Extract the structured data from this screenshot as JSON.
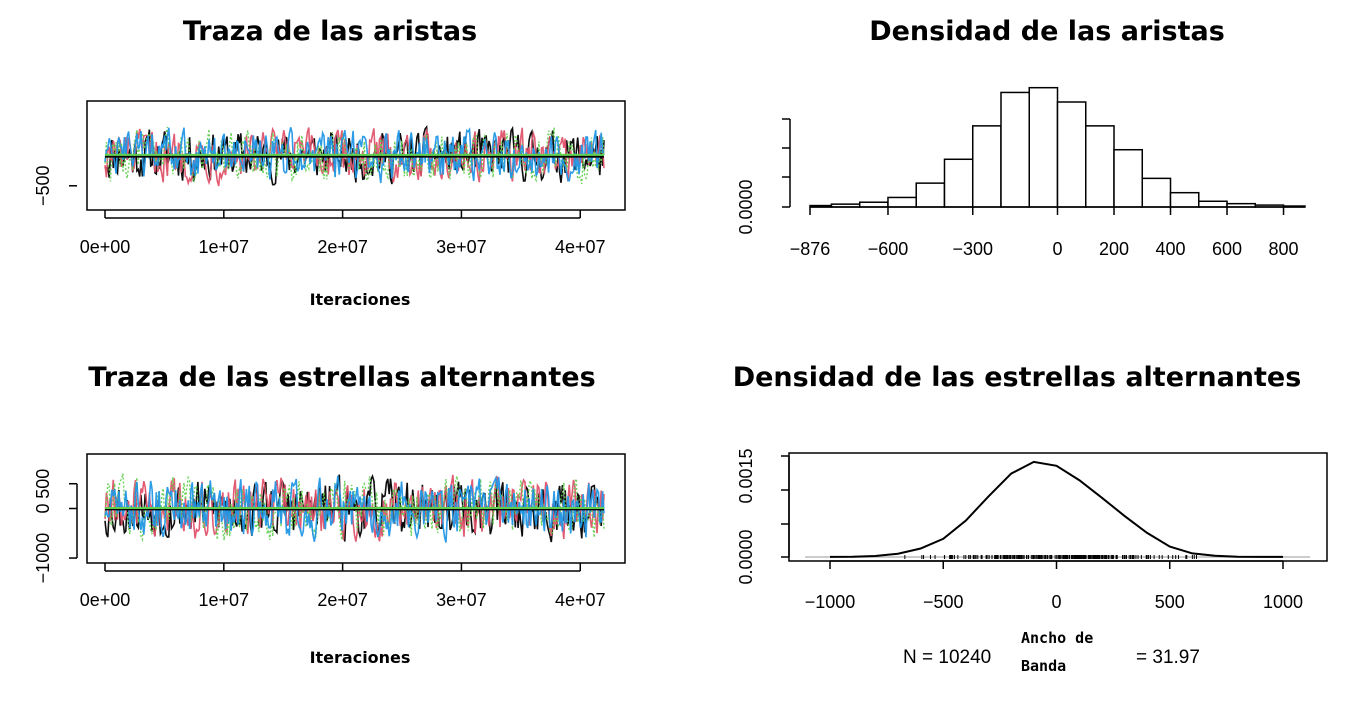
{
  "chart_data": [
    {
      "id": "trace-edges",
      "type": "line",
      "title": "Traza de las aristas",
      "xlabel": "Iteraciones",
      "ylabel": "",
      "x_ticks": [
        "0e+00",
        "1e+07",
        "2e+07",
        "3e+07",
        "4e+07"
      ],
      "x_tick_values": [
        0,
        10000000,
        20000000,
        30000000,
        40000000
      ],
      "y_ticks": [
        "−500"
      ],
      "y_tick_values": [
        -500
      ],
      "xlim": [
        0,
        42000000
      ],
      "ylim": [
        -900,
        900
      ],
      "series_colors": [
        "#000000",
        "#df536b",
        "#61d04f",
        "#2297e6"
      ],
      "mean_line_colors": [
        "#000000",
        "#61d04f"
      ],
      "series_amplitude": 420,
      "center": 0,
      "grid": false
    },
    {
      "id": "density-edges",
      "type": "bar",
      "title": "Densidad de las aristas",
      "xlabel": "",
      "ylabel": "",
      "x_ticks": [
        "−876",
        "−600",
        "−300",
        "0",
        "200",
        "400",
        "600",
        "800"
      ],
      "x_tick_values": [
        -876,
        -600,
        -300,
        0,
        200,
        400,
        600,
        800
      ],
      "y_ticks": [
        "0.0000"
      ],
      "y_tick_values": [
        0
      ],
      "xlim": [
        -876,
        876
      ],
      "ylim": [
        0,
        0.0022
      ],
      "bin_edges": [
        -900,
        -800,
        -700,
        -600,
        -500,
        -400,
        -300,
        -200,
        -100,
        0,
        100,
        200,
        300,
        400,
        500,
        600,
        700,
        800,
        900
      ],
      "values": [
        3e-05,
        6e-05,
        0.0001,
        0.0002,
        0.0005,
        0.001,
        0.0017,
        0.0024,
        0.0025,
        0.0022,
        0.0017,
        0.0012,
        0.0006,
        0.0003,
        0.00012,
        7e-05,
        4e-05,
        2e-05
      ],
      "grid": false
    },
    {
      "id": "trace-stars",
      "type": "line",
      "title": "Traza de las estrellas alternantes",
      "xlabel": "Iteraciones",
      "ylabel": "",
      "x_ticks": [
        "0e+00",
        "1e+07",
        "2e+07",
        "3e+07",
        "4e+07"
      ],
      "x_tick_values": [
        0,
        10000000,
        20000000,
        30000000,
        40000000
      ],
      "y_ticks": [
        "−1000",
        "0",
        "500"
      ],
      "y_tick_values": [
        -1000,
        0,
        500
      ],
      "xlim": [
        0,
        42000000
      ],
      "ylim": [
        -1100,
        1100
      ],
      "series_colors": [
        "#000000",
        "#df536b",
        "#61d04f",
        "#2297e6"
      ],
      "mean_line_colors": [
        "#000000",
        "#61d04f"
      ],
      "series_amplitude": 600,
      "center": 0,
      "grid": false
    },
    {
      "id": "density-stars",
      "type": "line",
      "title": "Densidad de las estrellas alternantes",
      "xlabel": "",
      "ylabel": "",
      "x_ticks": [
        "−1000",
        "−500",
        "0",
        "500",
        "1000"
      ],
      "x_tick_values": [
        -1000,
        -500,
        0,
        500,
        1000
      ],
      "y_ticks": [
        "0.0000",
        "0.0015"
      ],
      "y_tick_values": [
        0,
        0.0015
      ],
      "xlim": [
        -1150,
        1200
      ],
      "ylim": [
        0,
        0.00155
      ],
      "x": [
        -1000,
        -900,
        -800,
        -700,
        -600,
        -500,
        -400,
        -300,
        -200,
        -100,
        0,
        100,
        200,
        300,
        400,
        500,
        600,
        700,
        800,
        900,
        1000
      ],
      "values": [
        1e-06,
        3e-06,
        1.5e-05,
        5e-05,
        0.00013,
        0.00028,
        0.00056,
        0.00093,
        0.00128,
        0.00146,
        0.0014,
        0.00118,
        0.00091,
        0.00063,
        0.00037,
        0.00016,
        5.5e-05,
        1.8e-05,
        5e-06,
        2e-06,
        1e-06
      ],
      "rug_range": [
        -950,
        950
      ],
      "footer_left": "N = 10240",
      "footer_bw_line1": "Ancho  de",
      "footer_bw_line2": "Banda",
      "footer_right": "= 31.97",
      "grid": false
    }
  ]
}
